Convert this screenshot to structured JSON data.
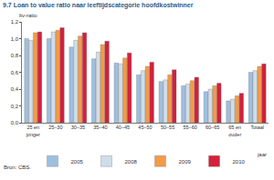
{
  "chart_data": {
    "type": "bar",
    "title": "9.7 Loan to value ratio naar leeftijdscategorie hoofdkostwinner",
    "ylabel": "ltv-ratio",
    "xlabel": "jaar",
    "source": "Bron: CBS.",
    "categories": [
      "25 en jonger",
      "25–30",
      "30–35",
      "35–40",
      "40–45",
      "45–50",
      "50–55",
      "55–60",
      "60–65",
      "65 en ouder",
      "Totaal"
    ],
    "series": [
      {
        "name": "2005",
        "color": "#9fbfe0",
        "values": [
          1.0,
          1.0,
          0.9,
          0.76,
          0.71,
          0.57,
          0.49,
          0.44,
          0.37,
          0.26,
          0.6
        ]
      },
      {
        "name": "2008",
        "color": "#cfdde9",
        "values": [
          0.98,
          1.08,
          0.98,
          0.84,
          0.7,
          0.62,
          0.51,
          0.46,
          0.4,
          0.28,
          0.62
        ]
      },
      {
        "name": "2009",
        "color": "#f29b4b",
        "values": [
          1.07,
          1.1,
          1.03,
          0.93,
          0.77,
          0.67,
          0.57,
          0.5,
          0.44,
          0.32,
          0.67
        ]
      },
      {
        "name": "2010",
        "color": "#d2213c",
        "values": [
          1.08,
          1.13,
          1.07,
          0.97,
          0.83,
          0.72,
          0.63,
          0.54,
          0.47,
          0.35,
          0.7
        ]
      }
    ],
    "ylim": [
      0,
      1.2
    ],
    "yticks": [
      {
        "value": 0,
        "label": "0,0"
      },
      {
        "value": 0.2,
        "label": "0,2"
      },
      {
        "value": 0.4,
        "label": "0,4"
      },
      {
        "value": 0.6,
        "label": "0,6"
      },
      {
        "value": 0.8,
        "label": "0,8"
      },
      {
        "value": 1.0,
        "label": "1,0"
      },
      {
        "value": 1.2,
        "label": "1,2"
      }
    ],
    "grid": false,
    "legend": "bottom"
  }
}
